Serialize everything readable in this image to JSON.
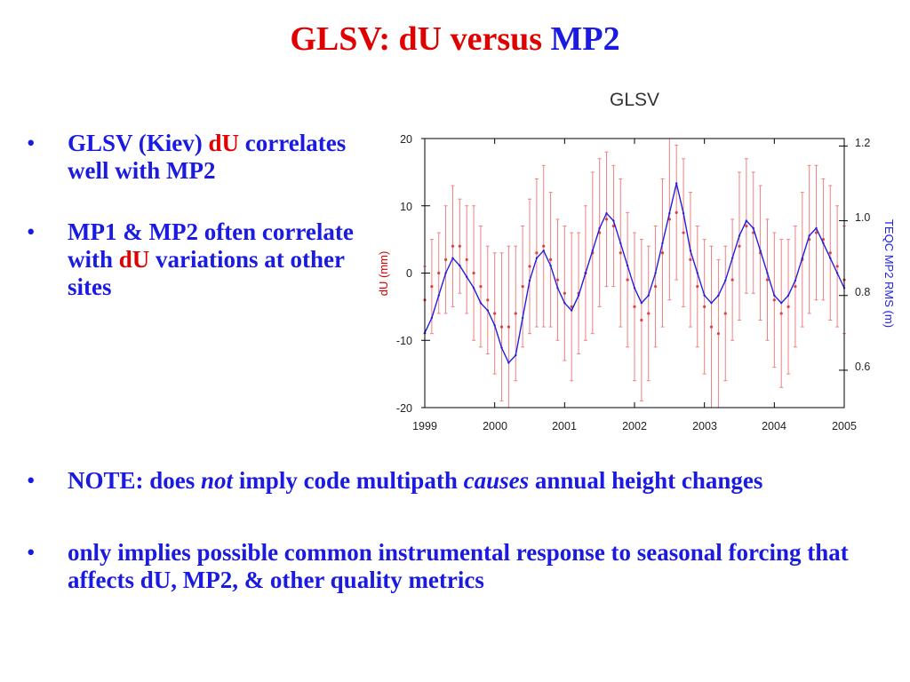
{
  "slide": {
    "title_part1": "GLSV:  dU versus",
    "title_part2": " MP2",
    "bullets_top": [
      {
        "prefix": "GLSV (Kiev) ",
        "highlight": "dU",
        "suffix": " correlates well with MP2"
      },
      {
        "prefix": "MP1 & MP2 often correlate with ",
        "highlight": "dU",
        "suffix": " variations at other sites"
      }
    ],
    "bullets_bottom": [
      {
        "a": "NOTE: does ",
        "b": "not",
        "c": " imply code multipath ",
        "d": "causes",
        "e": " annual height changes"
      },
      {
        "text": "only implies possible common instrumental response to seasonal forcing that affects dU, MP2, & other quality metrics"
      }
    ],
    "bullet_glyph": "•"
  },
  "chart_data": {
    "type": "line",
    "title": "GLSV",
    "xlabel": "",
    "ylabel": "dU (mm)",
    "y2label": "TEQC MP2 RMS (m)",
    "xlim": [
      1999,
      2005
    ],
    "ylim": [
      -20,
      20
    ],
    "y2lim": [
      0.5,
      1.22
    ],
    "x_ticks": [
      "1999",
      "2000",
      "2001",
      "2002",
      "2003",
      "2004",
      "2005"
    ],
    "y_ticks": [
      "20",
      "10",
      "0",
      "-10",
      "-20"
    ],
    "y2_ticks": [
      "1.2",
      "1.0",
      "0.8",
      "0.6"
    ],
    "series": [
      {
        "axis": "left",
        "color": "#e04040",
        "style": "points with error bars",
        "x": [
          1999.0,
          1999.1,
          1999.2,
          1999.3,
          1999.4,
          1999.5,
          1999.6,
          1999.7,
          1999.8,
          1999.9,
          2000.0,
          2000.1,
          2000.2,
          2000.3,
          2000.4,
          2000.5,
          2000.6,
          2000.7,
          2000.8,
          2000.9,
          2001.0,
          2001.1,
          2001.2,
          2001.3,
          2001.4,
          2001.5,
          2001.6,
          2001.7,
          2001.8,
          2001.9,
          2002.0,
          2002.1,
          2002.2,
          2002.3,
          2002.4,
          2002.5,
          2002.6,
          2002.7,
          2002.8,
          2002.9,
          2003.0,
          2003.1,
          2003.2,
          2003.3,
          2003.4,
          2003.5,
          2003.6,
          2003.7,
          2003.8,
          2003.9,
          2004.0,
          2004.1,
          2004.2,
          2004.3,
          2004.4,
          2004.5,
          2004.6,
          2004.7,
          2004.8,
          2004.9,
          2005.0
        ],
        "y": [
          -4,
          -2,
          0,
          2,
          4,
          4,
          2,
          0,
          -2,
          -4,
          -6,
          -8,
          -8,
          -6,
          -2,
          1,
          3,
          4,
          2,
          -1,
          -3,
          -5,
          -3,
          0,
          3,
          6,
          8,
          7,
          3,
          -1,
          -5,
          -7,
          -6,
          -2,
          3,
          8,
          9,
          6,
          2,
          -2,
          -5,
          -8,
          -9,
          -6,
          -1,
          4,
          7,
          6,
          3,
          -1,
          -4,
          -6,
          -5,
          -2,
          2,
          5,
          6,
          5,
          3,
          1,
          -1
        ],
        "err": [
          5,
          7,
          6,
          8,
          9,
          7,
          8,
          10,
          9,
          8,
          9,
          11,
          12,
          10,
          9,
          10,
          11,
          12,
          10,
          9,
          10,
          11,
          9,
          10,
          12,
          11,
          10,
          9,
          11,
          10,
          11,
          12,
          10,
          9,
          11,
          12,
          10,
          11,
          10,
          9,
          10,
          12,
          11,
          10,
          9,
          11,
          10,
          9,
          10,
          9,
          10,
          11,
          10,
          9,
          10,
          11,
          10,
          9,
          10,
          9,
          8
        ]
      },
      {
        "axis": "right",
        "color": "#2020e0",
        "style": "line",
        "x": [
          1999.0,
          1999.1,
          1999.2,
          1999.3,
          1999.4,
          1999.5,
          1999.6,
          1999.7,
          1999.8,
          1999.9,
          2000.0,
          2000.1,
          2000.2,
          2000.3,
          2000.4,
          2000.5,
          2000.6,
          2000.7,
          2000.8,
          2000.9,
          2001.0,
          2001.1,
          2001.2,
          2001.3,
          2001.4,
          2001.5,
          2001.6,
          2001.7,
          2001.8,
          2001.9,
          2002.0,
          2002.1,
          2002.2,
          2002.3,
          2002.4,
          2002.5,
          2002.6,
          2002.7,
          2002.8,
          2002.9,
          2003.0,
          2003.1,
          2003.2,
          2003.3,
          2003.4,
          2003.5,
          2003.6,
          2003.7,
          2003.8,
          2003.9,
          2004.0,
          2004.1,
          2004.2,
          2004.3,
          2004.4,
          2004.5,
          2004.6,
          2004.7,
          2004.8,
          2004.9,
          2005.0
        ],
        "y": [
          0.7,
          0.74,
          0.8,
          0.86,
          0.9,
          0.88,
          0.85,
          0.82,
          0.78,
          0.76,
          0.72,
          0.66,
          0.62,
          0.64,
          0.74,
          0.84,
          0.9,
          0.92,
          0.88,
          0.82,
          0.78,
          0.76,
          0.8,
          0.86,
          0.92,
          0.98,
          1.02,
          1.0,
          0.94,
          0.88,
          0.82,
          0.78,
          0.8,
          0.86,
          0.94,
          1.02,
          1.1,
          1.02,
          0.92,
          0.86,
          0.8,
          0.78,
          0.8,
          0.84,
          0.9,
          0.96,
          1.0,
          0.98,
          0.92,
          0.86,
          0.8,
          0.78,
          0.8,
          0.84,
          0.9,
          0.96,
          0.98,
          0.94,
          0.9,
          0.86,
          0.82
        ]
      }
    ]
  }
}
